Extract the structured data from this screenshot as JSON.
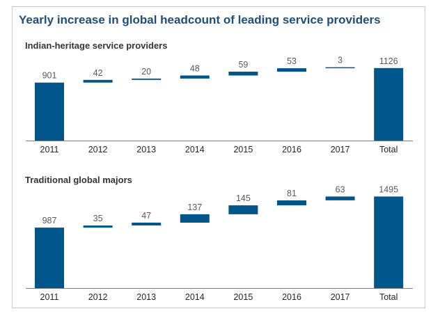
{
  "title": "Yearly increase in global headcount of leading service providers",
  "colors": {
    "bar": "#00568a",
    "axis": "#7f7f7f",
    "title": "#1f4e79"
  },
  "chart_data": [
    {
      "type": "bar",
      "subtype": "waterfall",
      "title": "Indian-heritage service providers",
      "categories": [
        "2011",
        "2012",
        "2013",
        "2014",
        "2015",
        "2016",
        "2017",
        "Total"
      ],
      "values": [
        901,
        42,
        20,
        48,
        59,
        53,
        3,
        1126
      ],
      "ylim": [
        0,
        1200
      ]
    },
    {
      "type": "bar",
      "subtype": "waterfall",
      "title": "Traditional global majors",
      "categories": [
        "2011",
        "2012",
        "2013",
        "2014",
        "2015",
        "2016",
        "2017",
        "Total"
      ],
      "values": [
        987,
        35,
        47,
        137,
        145,
        81,
        63,
        1495
      ],
      "ylim": [
        0,
        1600
      ]
    }
  ]
}
